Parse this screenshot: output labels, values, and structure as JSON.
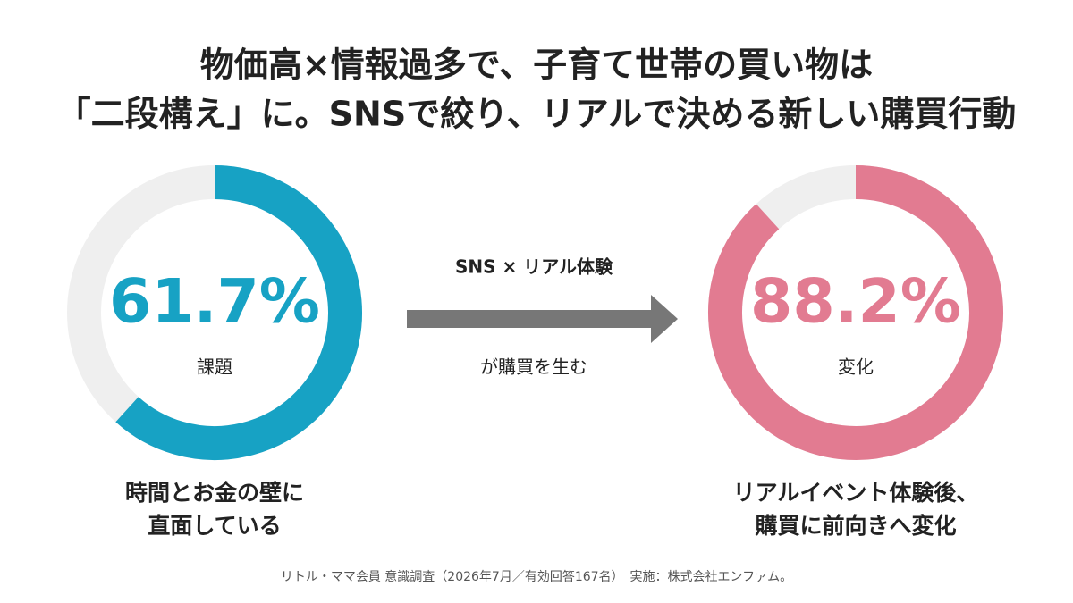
{
  "title": [
    "物価高×情報過多で、子育て世帯の買い物は",
    "「二段構え」に。SNSで絞り、リアルで決める新しい購買行動"
  ],
  "chart_data": [
    {
      "type": "donut",
      "values": [
        61.7
      ],
      "value_labels": [
        "61.7%"
      ],
      "label": "課題",
      "caption": [
        "時間とお金の壁に",
        "直面している"
      ],
      "color": "#17a2c4"
    },
    {
      "type": "donut",
      "values": [
        88.2
      ],
      "value_labels": [
        "88.2%"
      ],
      "label": "変化",
      "caption": [
        "リアルイベント体験後、",
        "購買に前向きへ変化"
      ],
      "color": "#e27b91"
    }
  ],
  "arrow": {
    "top": "SNS × リアル体験",
    "bottom": "が購買を生む"
  },
  "footer": "リトル・ママ会員 意識調査（2026年7月／有効回答167名）　実施：株式会社エンファム。"
}
